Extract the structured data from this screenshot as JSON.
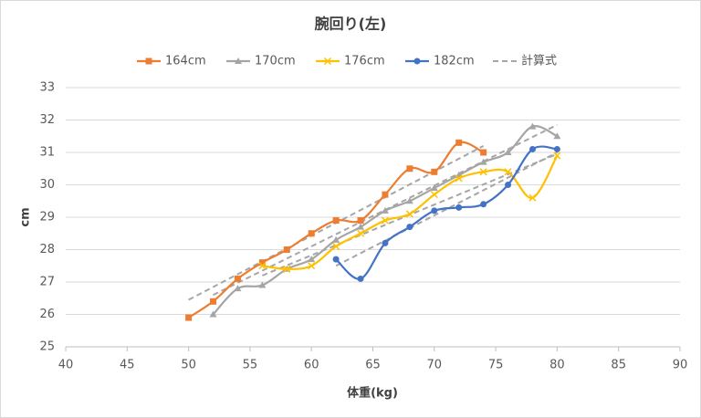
{
  "chart_data": {
    "type": "line",
    "title": "腕回り(左)",
    "x_label": "体重(kg)",
    "y_label": "cm",
    "x": [
      50,
      52,
      54,
      56,
      58,
      60,
      62,
      64,
      66,
      68,
      70,
      72,
      74,
      76,
      78,
      80
    ],
    "series": [
      {
        "name": "164cm",
        "color": "#ed7d31",
        "marker": "square",
        "values": [
          25.9,
          26.4,
          27.1,
          27.6,
          28.0,
          28.5,
          28.9,
          28.9,
          29.7,
          30.5,
          30.4,
          31.3,
          31.0,
          null,
          null,
          null
        ]
      },
      {
        "name": "170cm",
        "color": "#a5a5a5",
        "marker": "triangle",
        "values": [
          null,
          26.0,
          26.8,
          26.9,
          27.4,
          27.7,
          28.3,
          28.7,
          29.2,
          29.5,
          29.9,
          30.3,
          30.7,
          31.0,
          31.8,
          31.5
        ]
      },
      {
        "name": "176cm",
        "color": "#ffc000",
        "marker": "cross",
        "values": [
          null,
          null,
          null,
          27.5,
          27.4,
          27.5,
          28.1,
          28.5,
          28.9,
          29.1,
          29.7,
          30.2,
          30.4,
          30.4,
          29.6,
          30.9
        ]
      },
      {
        "name": "182cm",
        "color": "#4472c4",
        "marker": "circle",
        "values": [
          null,
          null,
          null,
          null,
          null,
          null,
          27.7,
          27.1,
          28.2,
          28.7,
          29.2,
          29.3,
          29.4,
          30.0,
          31.1,
          31.1
        ]
      }
    ],
    "trendline": {
      "name": "計算式",
      "color": "#a6a6a6",
      "lines": [
        {
          "x": [
            50,
            74
          ],
          "y": [
            26.45,
            31.2
          ]
        },
        {
          "x": [
            52,
            80
          ],
          "y": [
            26.6,
            31.85
          ]
        },
        {
          "x": [
            56,
            80
          ],
          "y": [
            27.2,
            30.95
          ]
        },
        {
          "x": [
            62,
            80
          ],
          "y": [
            27.5,
            31.0
          ]
        }
      ]
    },
    "xlim": [
      40,
      90
    ],
    "xticks": [
      40,
      45,
      50,
      55,
      60,
      65,
      70,
      75,
      80,
      85,
      90
    ],
    "ylim": [
      25,
      33
    ],
    "yticks": [
      25,
      26,
      27,
      28,
      29,
      30,
      31,
      32,
      33
    ],
    "grid": true,
    "legend": "top"
  }
}
